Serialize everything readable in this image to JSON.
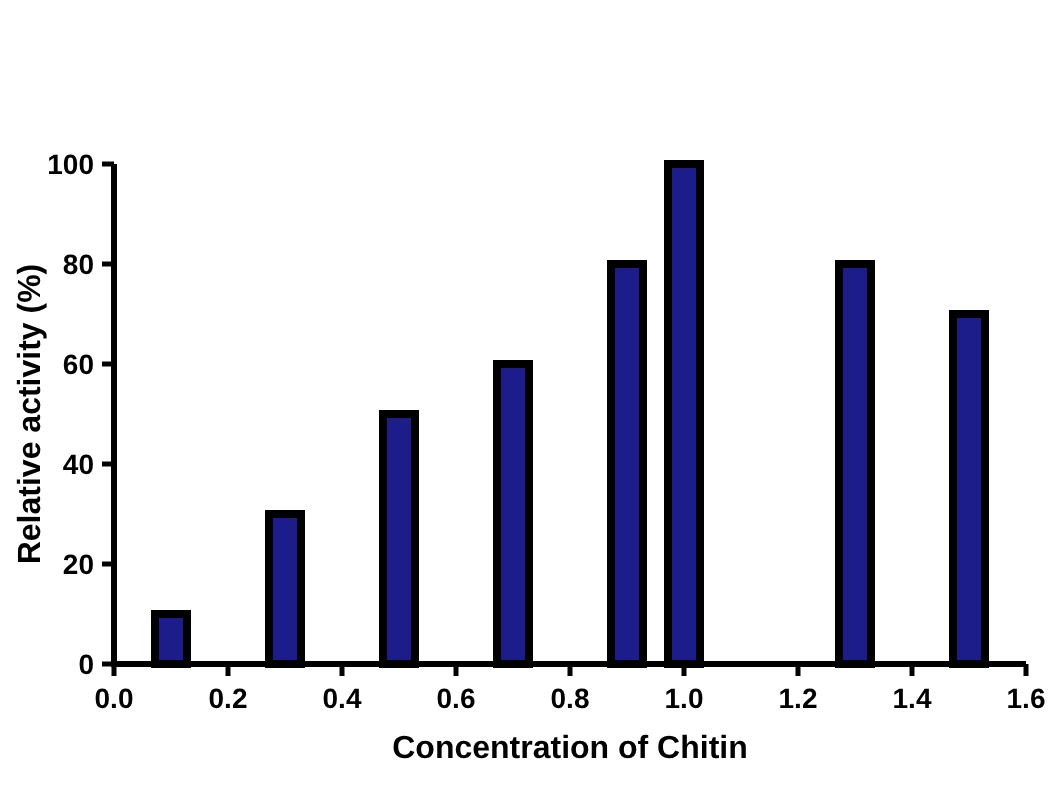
{
  "chart_data": {
    "type": "bar",
    "xlabel": "Concentration of Chitin",
    "ylabel": "Relative activity (%)",
    "x": [
      0.1,
      0.3,
      0.5,
      0.7,
      0.9,
      1.0,
      1.3,
      1.5
    ],
    "values": [
      10,
      30,
      50,
      60,
      80,
      100,
      80,
      70
    ],
    "color": "#1c1c8a",
    "xlim": [
      0,
      1.6
    ],
    "xticks": [
      {
        "value": 0,
        "label": "0.0"
      },
      {
        "value": 0.2,
        "label": "0.2"
      },
      {
        "value": 0.4,
        "label": "0.4"
      },
      {
        "value": 0.6,
        "label": "0.6"
      },
      {
        "value": 0.8,
        "label": "0.8"
      },
      {
        "value": 1,
        "label": "1.0"
      },
      {
        "value": 1.2,
        "label": "1.2"
      },
      {
        "value": 1.4,
        "label": "1.4"
      },
      {
        "value": 1.6,
        "label": "1.6"
      }
    ],
    "ylim": [
      0,
      100
    ],
    "yticks": [
      0,
      20,
      40,
      60,
      80,
      100
    ],
    "grid": false
  }
}
